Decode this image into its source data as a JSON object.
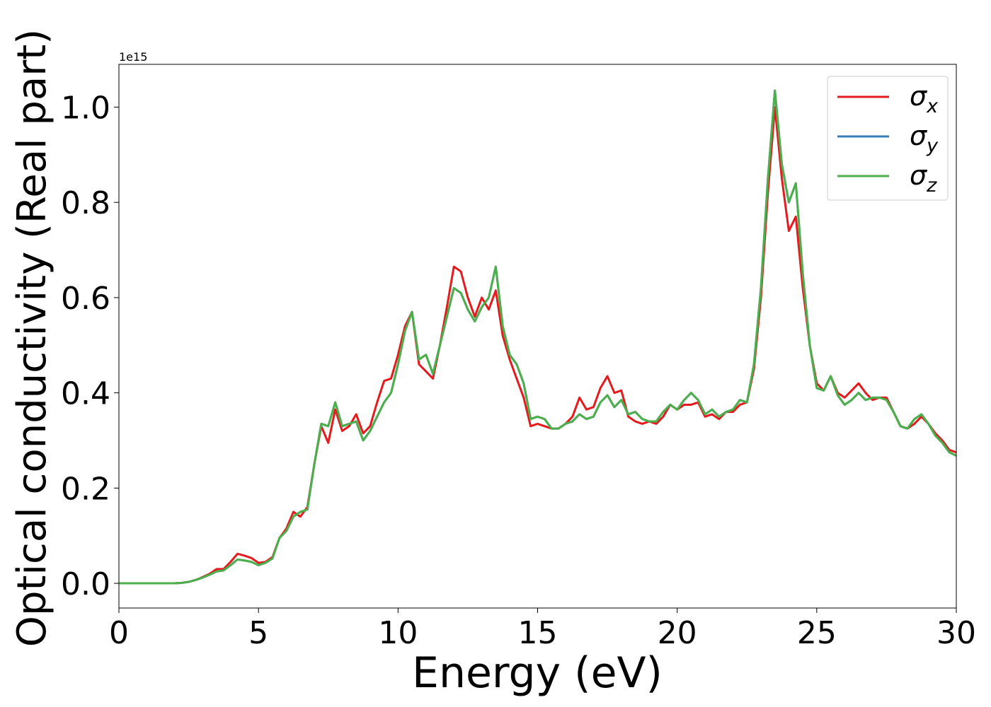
{
  "chart_data": {
    "type": "line",
    "xlabel": "Energy (eV)",
    "ylabel": "Optical conductivity (Real part)",
    "y_offset_label": "1e15",
    "xlim": [
      0,
      30
    ],
    "xticks": [
      0,
      5,
      10,
      15,
      20,
      25,
      30
    ],
    "ylim": [
      -0.0519,
      1.0899
    ],
    "yticks": [
      {
        "value": 0,
        "label": "0.0"
      },
      {
        "value": 0.2,
        "label": "0.2"
      },
      {
        "value": 0.4,
        "label": "0.4"
      },
      {
        "value": 0.6,
        "label": "0.6"
      },
      {
        "value": 0.8,
        "label": "0.8"
      },
      {
        "value": 1.0,
        "label": "1.0"
      }
    ],
    "grid": false,
    "legend": "upper right",
    "x": [
      0,
      0.25,
      0.5,
      0.75,
      1,
      1.25,
      1.5,
      1.75,
      2,
      2.25,
      2.5,
      2.75,
      3,
      3.25,
      3.5,
      3.75,
      4,
      4.25,
      4.5,
      4.75,
      5,
      5.25,
      5.5,
      5.75,
      6,
      6.25,
      6.5,
      6.75,
      7,
      7.25,
      7.5,
      7.75,
      8,
      8.25,
      8.5,
      8.75,
      9,
      9.25,
      9.5,
      9.75,
      10,
      10.25,
      10.5,
      10.75,
      11,
      11.25,
      11.5,
      11.75,
      12,
      12.25,
      12.5,
      12.75,
      13,
      13.25,
      13.5,
      13.75,
      14,
      14.25,
      14.5,
      14.75,
      15,
      15.25,
      15.5,
      15.75,
      16,
      16.25,
      16.5,
      16.75,
      17,
      17.25,
      17.5,
      17.75,
      18,
      18.25,
      18.5,
      18.75,
      19,
      19.25,
      19.5,
      19.75,
      20,
      20.25,
      20.5,
      20.75,
      21,
      21.25,
      21.5,
      21.75,
      22,
      22.25,
      22.5,
      22.75,
      23,
      23.25,
      23.5,
      23.75,
      24,
      24.25,
      24.5,
      24.75,
      25,
      25.25,
      25.5,
      25.75,
      26,
      26.25,
      26.5,
      26.75,
      27,
      27.25,
      27.5,
      27.75,
      28,
      28.25,
      28.5,
      28.75,
      29,
      29.25,
      29.5,
      29.75,
      30
    ],
    "series": [
      {
        "name": "σx",
        "color": "#e41a1c",
        "values": [
          0,
          0,
          0,
          0,
          0,
          0,
          0,
          0,
          0,
          0.001,
          0.003,
          0.007,
          0.013,
          0.02,
          0.03,
          0.03,
          0.045,
          0.062,
          0.058,
          0.053,
          0.043,
          0.045,
          0.055,
          0.095,
          0.115,
          0.15,
          0.14,
          0.16,
          0.25,
          0.33,
          0.295,
          0.365,
          0.32,
          0.33,
          0.355,
          0.315,
          0.33,
          0.38,
          0.425,
          0.43,
          0.48,
          0.54,
          0.57,
          0.46,
          0.445,
          0.43,
          0.5,
          0.58,
          0.665,
          0.655,
          0.6,
          0.56,
          0.6,
          0.575,
          0.615,
          0.52,
          0.47,
          0.43,
          0.39,
          0.33,
          0.335,
          0.33,
          0.325,
          0.325,
          0.335,
          0.35,
          0.39,
          0.365,
          0.37,
          0.41,
          0.435,
          0.4,
          0.405,
          0.35,
          0.34,
          0.335,
          0.34,
          0.335,
          0.35,
          0.375,
          0.365,
          0.375,
          0.375,
          0.38,
          0.35,
          0.355,
          0.345,
          0.36,
          0.36,
          0.375,
          0.38,
          0.45,
          0.6,
          0.82,
          1.0,
          0.85,
          0.74,
          0.77,
          0.62,
          0.5,
          0.42,
          0.405,
          0.435,
          0.4,
          0.39,
          0.405,
          0.42,
          0.4,
          0.385,
          0.39,
          0.39,
          0.36,
          0.33,
          0.325,
          0.335,
          0.35,
          0.335,
          0.315,
          0.3,
          0.28,
          0.275
        ]
      },
      {
        "name": "σy",
        "color": "#377eb8",
        "values": [
          0,
          0,
          0,
          0,
          0,
          0,
          0,
          0,
          0,
          0.001,
          0.003,
          0.007,
          0.012,
          0.018,
          0.025,
          0.027,
          0.038,
          0.05,
          0.048,
          0.045,
          0.038,
          0.043,
          0.052,
          0.095,
          0.11,
          0.14,
          0.15,
          0.155,
          0.25,
          0.335,
          0.33,
          0.38,
          0.33,
          0.335,
          0.34,
          0.3,
          0.32,
          0.35,
          0.38,
          0.4,
          0.46,
          0.53,
          0.57,
          0.47,
          0.48,
          0.44,
          0.5,
          0.56,
          0.62,
          0.61,
          0.575,
          0.55,
          0.58,
          0.6,
          0.665,
          0.54,
          0.48,
          0.46,
          0.42,
          0.345,
          0.35,
          0.345,
          0.325,
          0.325,
          0.335,
          0.34,
          0.355,
          0.345,
          0.35,
          0.38,
          0.395,
          0.37,
          0.385,
          0.355,
          0.36,
          0.345,
          0.34,
          0.34,
          0.36,
          0.375,
          0.365,
          0.385,
          0.4,
          0.385,
          0.355,
          0.365,
          0.35,
          0.36,
          0.365,
          0.385,
          0.38,
          0.46,
          0.62,
          0.85,
          1.035,
          0.88,
          0.8,
          0.84,
          0.65,
          0.5,
          0.41,
          0.405,
          0.435,
          0.395,
          0.375,
          0.385,
          0.4,
          0.385,
          0.39,
          0.39,
          0.385,
          0.36,
          0.33,
          0.325,
          0.345,
          0.355,
          0.335,
          0.31,
          0.295,
          0.275,
          0.268
        ]
      },
      {
        "name": "σz",
        "color": "#4daf4a",
        "values": [
          0,
          0,
          0,
          0,
          0,
          0,
          0,
          0,
          0,
          0.001,
          0.003,
          0.007,
          0.012,
          0.018,
          0.025,
          0.027,
          0.038,
          0.05,
          0.048,
          0.045,
          0.038,
          0.043,
          0.052,
          0.095,
          0.11,
          0.14,
          0.15,
          0.155,
          0.25,
          0.335,
          0.33,
          0.38,
          0.33,
          0.335,
          0.34,
          0.3,
          0.32,
          0.35,
          0.38,
          0.4,
          0.46,
          0.53,
          0.57,
          0.47,
          0.48,
          0.44,
          0.5,
          0.56,
          0.62,
          0.61,
          0.575,
          0.55,
          0.58,
          0.6,
          0.665,
          0.54,
          0.48,
          0.46,
          0.42,
          0.345,
          0.35,
          0.345,
          0.325,
          0.325,
          0.335,
          0.34,
          0.355,
          0.345,
          0.35,
          0.38,
          0.395,
          0.37,
          0.385,
          0.355,
          0.36,
          0.345,
          0.34,
          0.34,
          0.36,
          0.375,
          0.365,
          0.385,
          0.4,
          0.385,
          0.355,
          0.365,
          0.35,
          0.36,
          0.365,
          0.385,
          0.38,
          0.46,
          0.62,
          0.85,
          1.035,
          0.88,
          0.8,
          0.84,
          0.65,
          0.5,
          0.41,
          0.405,
          0.435,
          0.395,
          0.375,
          0.385,
          0.4,
          0.385,
          0.39,
          0.39,
          0.385,
          0.36,
          0.33,
          0.325,
          0.345,
          0.355,
          0.335,
          0.31,
          0.295,
          0.275,
          0.268
        ]
      }
    ]
  }
}
